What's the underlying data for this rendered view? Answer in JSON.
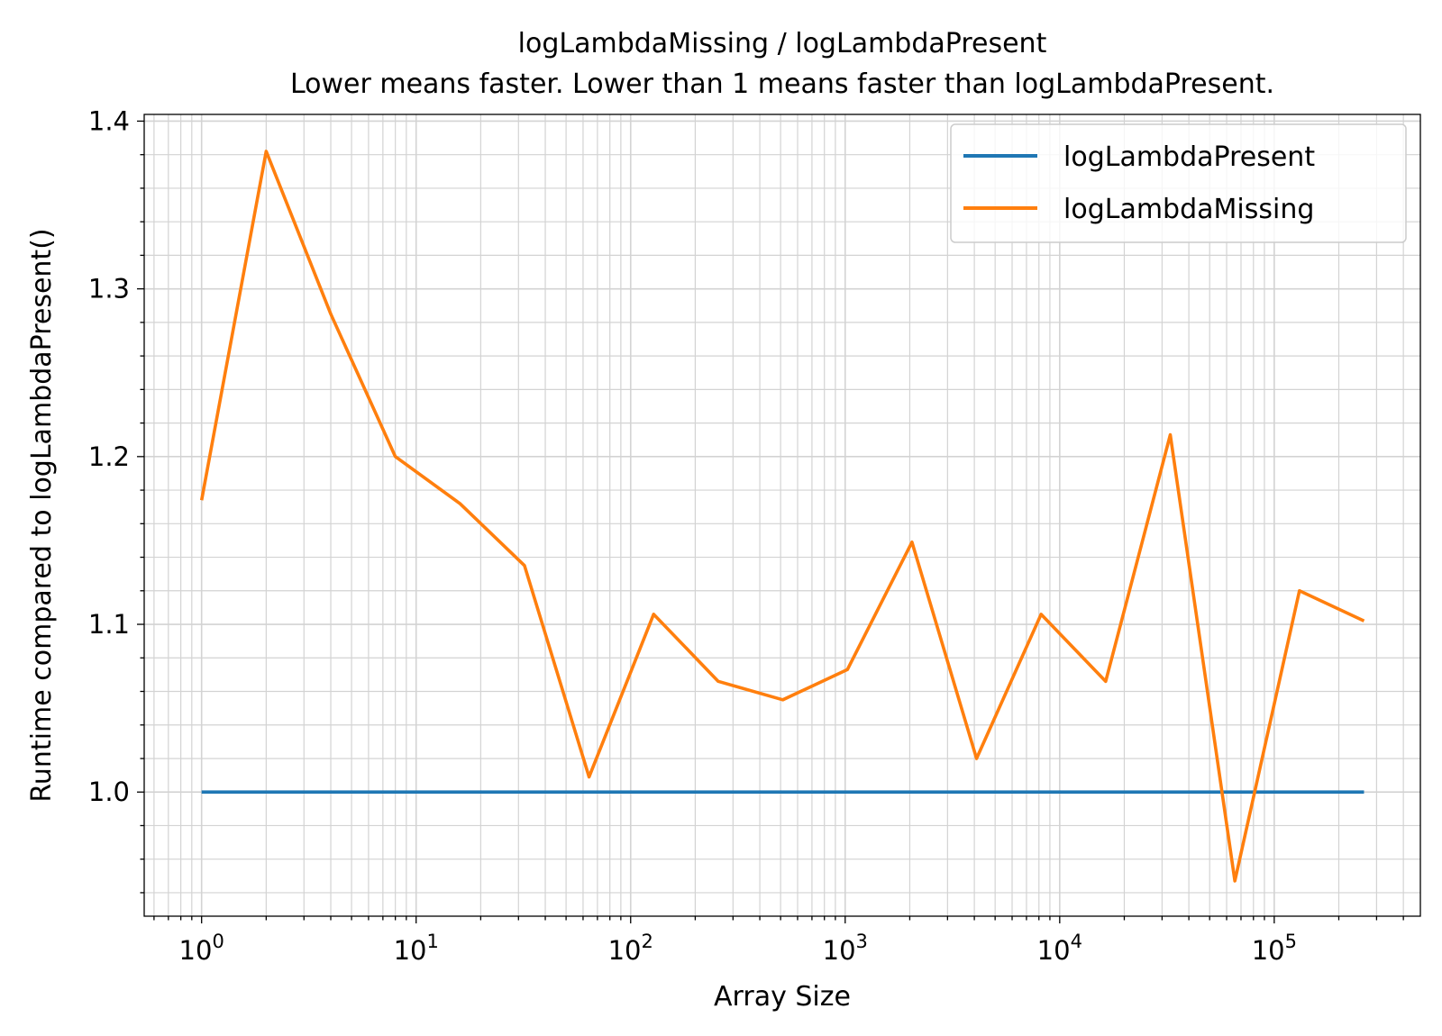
{
  "chart_data": {
    "type": "line",
    "title": "logLambdaMissing / logLambdaPresent",
    "subtitle": "Lower means faster. Lower than 1 means faster than logLambdaPresent.",
    "xlabel": "Array Size",
    "ylabel": "Runtime compared to logLambdaPresent()",
    "xscale": "log",
    "xlim": [
      0.54,
      480000
    ],
    "ylim": [
      0.926,
      1.404
    ],
    "x_ticks": [
      {
        "value": 1,
        "base": "10",
        "exp": "0"
      },
      {
        "value": 10,
        "base": "10",
        "exp": "1"
      },
      {
        "value": 100,
        "base": "10",
        "exp": "2"
      },
      {
        "value": 1000,
        "base": "10",
        "exp": "3"
      },
      {
        "value": 10000,
        "base": "10",
        "exp": "4"
      },
      {
        "value": 100000,
        "base": "10",
        "exp": "5"
      }
    ],
    "y_ticks": [
      {
        "value": 1.0,
        "label": "1.0"
      },
      {
        "value": 1.1,
        "label": "1.1"
      },
      {
        "value": 1.2,
        "label": "1.2"
      },
      {
        "value": 1.3,
        "label": "1.3"
      },
      {
        "value": 1.4,
        "label": "1.4"
      }
    ],
    "grid": true,
    "legend_position": "top-right",
    "x": [
      1,
      2,
      4,
      8,
      16,
      32,
      64,
      128,
      256,
      512,
      1024,
      2048,
      4096,
      8192,
      16384,
      32768,
      65536,
      131072,
      262144
    ],
    "series": [
      {
        "name": "logLambdaPresent",
        "color": "#1f77b4",
        "values": [
          1.0,
          1.0,
          1.0,
          1.0,
          1.0,
          1.0,
          1.0,
          1.0,
          1.0,
          1.0,
          1.0,
          1.0,
          1.0,
          1.0,
          1.0,
          1.0,
          1.0,
          1.0,
          1.0
        ]
      },
      {
        "name": "logLambdaMissing",
        "color": "#ff7f0e",
        "values": [
          1.174,
          1.382,
          1.285,
          1.2,
          1.172,
          1.135,
          1.009,
          1.106,
          1.066,
          1.055,
          1.073,
          1.149,
          1.02,
          1.106,
          1.066,
          1.213,
          0.947,
          1.12,
          1.102
        ]
      }
    ]
  }
}
